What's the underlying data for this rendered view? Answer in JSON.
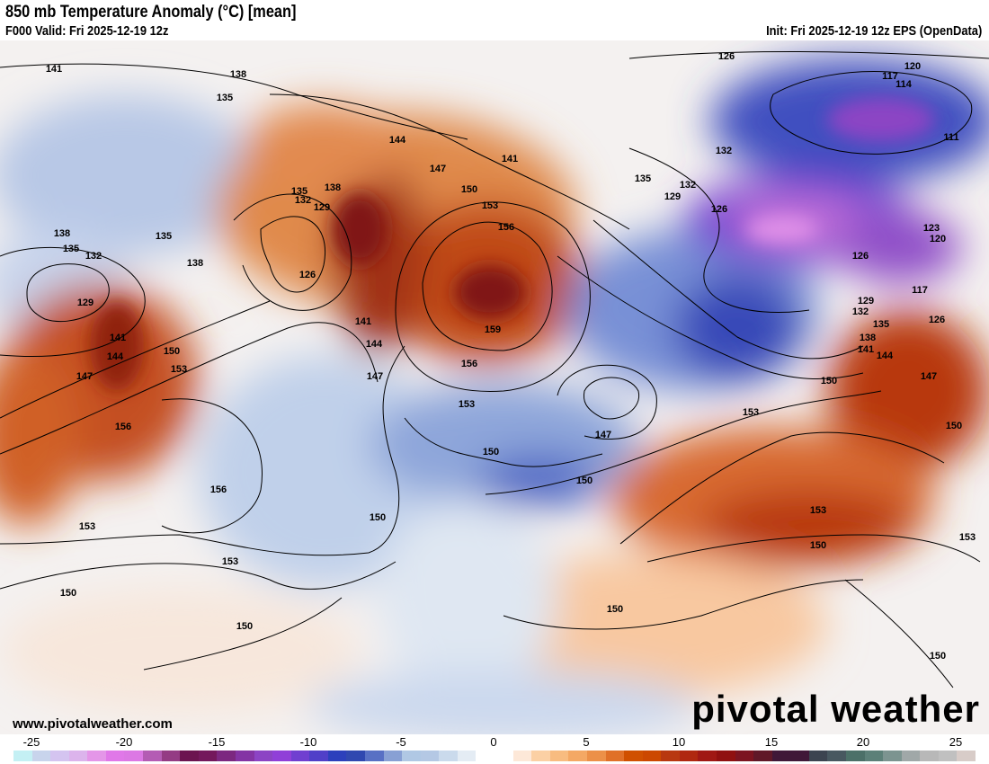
{
  "header": {
    "title": "850 mb Temperature Anomaly (°C) [mean]",
    "valid": "F000 Valid: Fri 2025-12-19 12z",
    "init": "Init: Fri 2025-12-19 12z EPS (OpenData)"
  },
  "footer": {
    "url": "www.pivotalweather.com",
    "brand": "pivotal weather"
  },
  "colorbar": {
    "ticks": [
      "-25",
      "-20",
      "-15",
      "-10",
      "-5",
      "0",
      "5",
      "10",
      "15",
      "20",
      "25"
    ],
    "colors": [
      "#c4f0f4",
      "#c8d4ec",
      "#d4c4f0",
      "#dcb4ec",
      "#e496e8",
      "#e078e8",
      "#dc78e4",
      "#b45cb4",
      "#943c84",
      "#6c1450",
      "#74185c",
      "#7c2880",
      "#8434a4",
      "#8c44c4",
      "#9040d8",
      "#7040d0",
      "#5040c8",
      "#2c40bc",
      "#3048b0",
      "#5870c4",
      "#88a0d4",
      "#b0c8e4",
      "#b4c8e4",
      "#cadaec",
      "#e4ecf4",
      "#ffffff",
      "#ffffff",
      "#fde8d8",
      "#fbd0a4",
      "#f8bc80",
      "#f4a864",
      "#ec9048",
      "#e07028",
      "#d05000",
      "#cc4800",
      "#b83810",
      "#b02810",
      "#a01814",
      "#901010",
      "#7c1420",
      "#601828",
      "#401838",
      "#401838",
      "#3c4450",
      "#485860",
      "#4c7068",
      "#5c8078",
      "#7c9490",
      "#a0a8a8",
      "#b8b8b8",
      "#c0c0c0",
      "#d8ccc8"
    ]
  },
  "contour_labels": [
    "141",
    "138",
    "135",
    "126",
    "120",
    "117",
    "114",
    "111",
    "144",
    "147",
    "141",
    "150",
    "153",
    "156",
    "135",
    "138",
    "132",
    "129",
    "126",
    "159",
    "156",
    "153",
    "150",
    "147",
    "144",
    "141",
    "147",
    "138",
    "135",
    "132",
    "129",
    "135",
    "138",
    "141",
    "144",
    "147",
    "150",
    "153",
    "156",
    "156",
    "153",
    "153",
    "150",
    "150",
    "150",
    "150",
    "150",
    "150",
    "153",
    "153",
    "150",
    "150",
    "153",
    "135",
    "132",
    "129",
    "132",
    "126",
    "123",
    "120",
    "126",
    "129",
    "132",
    "135",
    "138",
    "141",
    "144",
    "147",
    "150",
    "117",
    "126"
  ]
}
